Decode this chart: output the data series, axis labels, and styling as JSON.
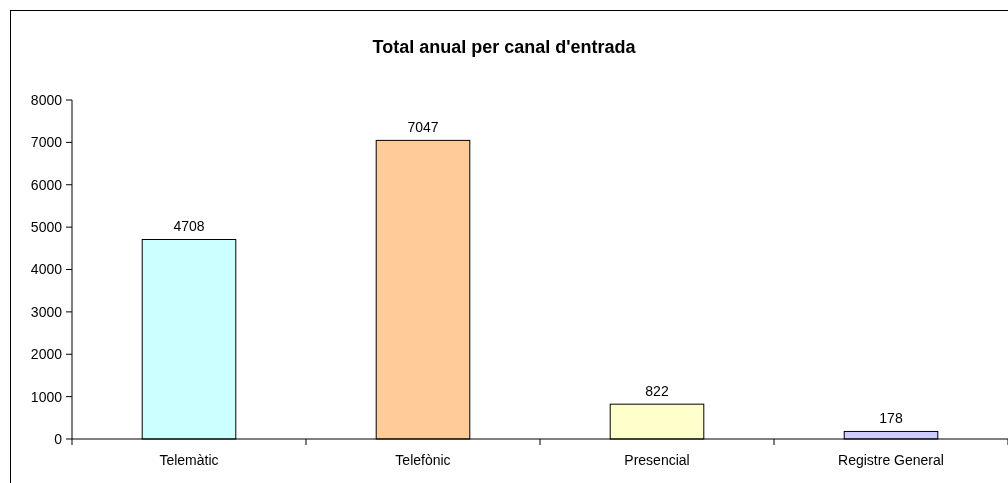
{
  "chart_data": {
    "type": "bar",
    "title": "Total anual per canal d'entrada",
    "categories": [
      "Telemàtic",
      "Telefònic",
      "Presencial",
      "Registre General"
    ],
    "values": [
      4708,
      7047,
      822,
      178
    ],
    "colors": [
      "#ccffff",
      "#ffcc99",
      "#ffffcc",
      "#ccccff"
    ],
    "ylim": [
      0,
      8000
    ],
    "yticks": [
      0,
      1000,
      2000,
      3000,
      4000,
      5000,
      6000,
      7000,
      8000
    ],
    "data_labels": true
  }
}
